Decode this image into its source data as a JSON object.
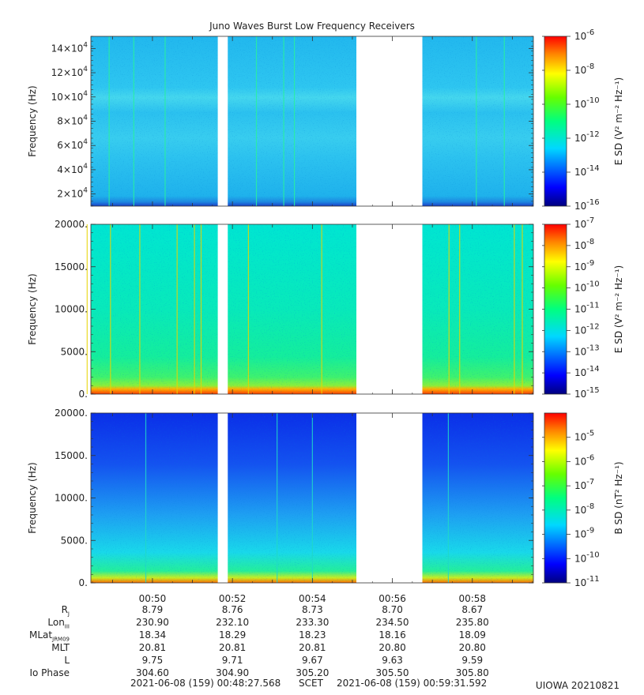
{
  "chart_data": [
    {
      "type": "heatmap",
      "title": "Juno Waves Burst Low Frequency Receivers",
      "ylabel": "Frequency (Hz)",
      "ylim": [
        10000,
        150000
      ],
      "yticks": [
        20000,
        40000,
        60000,
        80000,
        100000,
        120000,
        140000
      ],
      "ytick_labels": [
        "2×10^4",
        "4×10^4",
        "6×10^4",
        "8×10^4",
        "10×10^4",
        "12×10^4",
        "14×10^4"
      ],
      "colorbar_label": "E SD (V² m⁻² Hz⁻¹)",
      "colorbar_range_exp": [
        -16,
        -6
      ],
      "colorbar_ticks_exp": [
        -16,
        -14,
        -12,
        -10,
        -8,
        -6
      ],
      "data_gaps": [
        [
          "00:51:38",
          "00:51:53"
        ],
        [
          "00:55:06",
          "00:56:45"
        ]
      ],
      "spectral_lines": [
        "00:48:55",
        "00:49:32",
        "00:50:19",
        "00:52:36",
        "00:53:17",
        "00:53:33",
        "00:58:06",
        "00:58:48"
      ]
    },
    {
      "type": "heatmap",
      "ylabel": "Frequency (Hz)",
      "ylim": [
        0,
        20000
      ],
      "yticks": [
        0,
        5000,
        10000,
        15000,
        20000
      ],
      "ytick_labels": [
        "0.",
        "5000.",
        "10000.",
        "15000.",
        "20000."
      ],
      "colorbar_label": "E SD (V² m⁻² Hz⁻¹)",
      "colorbar_range_exp": [
        -15,
        -7
      ],
      "colorbar_ticks_exp": [
        -15,
        -14,
        -13,
        -12,
        -11,
        -10,
        -9,
        -8,
        -7
      ],
      "data_gaps": [
        [
          "00:51:38",
          "00:51:53"
        ],
        [
          "00:55:06",
          "00:56:45"
        ]
      ],
      "spectral_lines": [
        "00:48:22",
        "00:48:57",
        "00:49:41",
        "00:50:37",
        "00:51:03",
        "00:51:13",
        "00:52:24",
        "00:54:14",
        "00:57:25",
        "00:57:41",
        "00:59:03",
        "00:59:15"
      ]
    },
    {
      "type": "heatmap",
      "ylabel": "Frequency (Hz)",
      "ylim": [
        0,
        20000
      ],
      "yticks": [
        0,
        5000,
        10000,
        15000,
        20000
      ],
      "ytick_labels": [
        "0.",
        "5000.",
        "10000.",
        "15000.",
        "20000."
      ],
      "colorbar_label": "B SD (nT² Hz⁻¹)",
      "colorbar_range_exp": [
        -11,
        -4
      ],
      "colorbar_ticks_exp": [
        -11,
        -10,
        -9,
        -8,
        -7,
        -6,
        -5
      ],
      "data_gaps": [
        [
          "00:51:38",
          "00:51:53"
        ],
        [
          "00:55:06",
          "00:56:45"
        ]
      ],
      "spectral_lines": [
        "00:49:50",
        "00:53:07",
        "00:54:00",
        "00:57:24"
      ]
    }
  ],
  "x_axis": {
    "start": "00:48:27.568",
    "end": "00:59:31.592",
    "tick_labels": [
      "00:50",
      "00:52",
      "00:54",
      "00:56",
      "00:58"
    ]
  },
  "ephemeris": {
    "row_labels": [
      "R",
      "Lon",
      "MLat",
      "MLT",
      "L",
      "Io Phase"
    ],
    "row_subscripts": [
      "J",
      "III",
      "JRM09",
      "",
      "",
      ""
    ],
    "rows": [
      [
        "8.79",
        "8.76",
        "8.73",
        "8.70",
        "8.67"
      ],
      [
        "230.90",
        "232.10",
        "233.30",
        "234.50",
        "235.80"
      ],
      [
        "18.34",
        "18.29",
        "18.23",
        "18.16",
        "18.09"
      ],
      [
        "20.81",
        "20.81",
        "20.81",
        "20.80",
        "20.80"
      ],
      [
        "9.75",
        "9.71",
        "9.67",
        "9.63",
        "9.59"
      ],
      [
        "304.60",
        "304.90",
        "305.20",
        "305.50",
        "305.80"
      ]
    ]
  },
  "footer": {
    "start": "2021-06-08 (159) 00:48:27.568",
    "scet": "SCET",
    "end": "2021-06-08 (159) 00:59:31.592",
    "credit": "UIOWA 20210821"
  }
}
